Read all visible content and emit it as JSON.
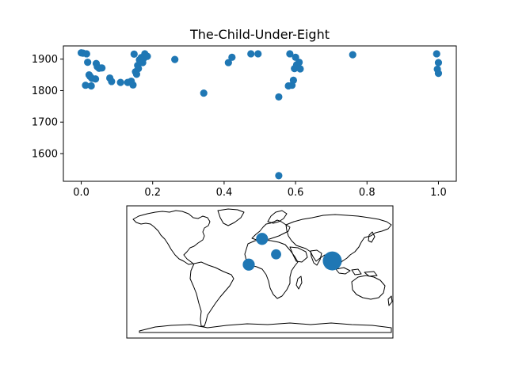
{
  "chart_data": [
    {
      "type": "scatter",
      "title": "The-Child-Under-Eight",
      "xlabel": "",
      "ylabel": "",
      "xlim": [
        -0.05,
        1.05
      ],
      "ylim": [
        1512,
        1942
      ],
      "xticks": [
        0.0,
        0.2,
        0.4,
        0.6,
        0.8,
        1.0
      ],
      "xtick_labels": [
        "0.0",
        "0.2",
        "0.4",
        "0.6",
        "0.8",
        "1.0"
      ],
      "yticks": [
        1600,
        1700,
        1800,
        1900
      ],
      "ytick_labels": [
        "1600",
        "1700",
        "1800",
        "1900"
      ],
      "grid": false,
      "marker_color": "#1f77b4",
      "points": [
        {
          "x": 0.0,
          "y": 1920
        },
        {
          "x": 0.005,
          "y": 1919
        },
        {
          "x": 0.015,
          "y": 1917
        },
        {
          "x": 0.018,
          "y": 1890
        },
        {
          "x": 0.012,
          "y": 1817
        },
        {
          "x": 0.022,
          "y": 1850
        },
        {
          "x": 0.025,
          "y": 1845
        },
        {
          "x": 0.028,
          "y": 1815
        },
        {
          "x": 0.03,
          "y": 1839
        },
        {
          "x": 0.04,
          "y": 1837
        },
        {
          "x": 0.042,
          "y": 1886
        },
        {
          "x": 0.045,
          "y": 1876
        },
        {
          "x": 0.05,
          "y": 1871
        },
        {
          "x": 0.058,
          "y": 1872
        },
        {
          "x": 0.08,
          "y": 1840
        },
        {
          "x": 0.085,
          "y": 1829
        },
        {
          "x": 0.11,
          "y": 1826
        },
        {
          "x": 0.13,
          "y": 1826
        },
        {
          "x": 0.14,
          "y": 1830
        },
        {
          "x": 0.145,
          "y": 1818
        },
        {
          "x": 0.148,
          "y": 1916
        },
        {
          "x": 0.152,
          "y": 1860
        },
        {
          "x": 0.155,
          "y": 1852
        },
        {
          "x": 0.158,
          "y": 1880
        },
        {
          "x": 0.16,
          "y": 1870
        },
        {
          "x": 0.163,
          "y": 1898
        },
        {
          "x": 0.168,
          "y": 1905
        },
        {
          "x": 0.172,
          "y": 1889
        },
        {
          "x": 0.175,
          "y": 1903
        },
        {
          "x": 0.178,
          "y": 1917
        },
        {
          "x": 0.185,
          "y": 1909
        },
        {
          "x": 0.262,
          "y": 1899
        },
        {
          "x": 0.343,
          "y": 1792
        },
        {
          "x": 0.412,
          "y": 1889
        },
        {
          "x": 0.422,
          "y": 1906
        },
        {
          "x": 0.475,
          "y": 1917
        },
        {
          "x": 0.495,
          "y": 1917
        },
        {
          "x": 0.553,
          "y": 1780
        },
        {
          "x": 0.553,
          "y": 1530
        },
        {
          "x": 0.58,
          "y": 1815
        },
        {
          "x": 0.584,
          "y": 1917
        },
        {
          "x": 0.59,
          "y": 1817
        },
        {
          "x": 0.594,
          "y": 1833
        },
        {
          "x": 0.597,
          "y": 1870
        },
        {
          "x": 0.6,
          "y": 1906
        },
        {
          "x": 0.603,
          "y": 1882
        },
        {
          "x": 0.606,
          "y": 1878
        },
        {
          "x": 0.61,
          "y": 1890
        },
        {
          "x": 0.613,
          "y": 1869
        },
        {
          "x": 0.76,
          "y": 1914
        },
        {
          "x": 0.995,
          "y": 1917
        },
        {
          "x": 0.997,
          "y": 1868
        },
        {
          "x": 1.0,
          "y": 1889
        },
        {
          "x": 1.0,
          "y": 1855
        }
      ]
    },
    {
      "type": "map",
      "projection": "equirectangular",
      "marker_color": "#1f77b4",
      "bubbles": [
        {
          "lon": 98,
          "lat": 15,
          "size": 1.0
        },
        {
          "lon": 3,
          "lat": 45,
          "size": 0.45
        },
        {
          "lon": -15,
          "lat": 10,
          "size": 0.45
        },
        {
          "lon": 22,
          "lat": 24,
          "size": 0.3
        }
      ]
    }
  ]
}
